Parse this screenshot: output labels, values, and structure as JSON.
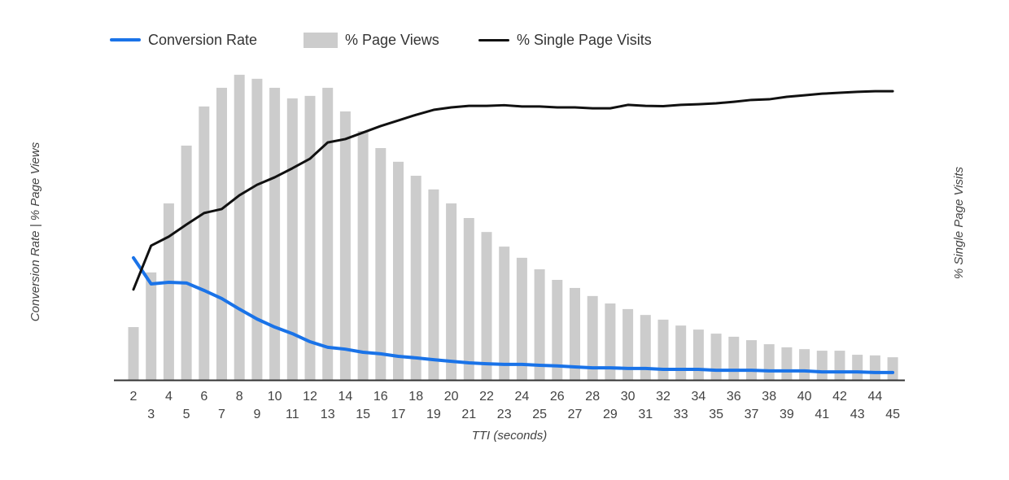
{
  "chart_data": {
    "type": "combo",
    "title": "",
    "xlabel": "TTI (seconds)",
    "ylabel_left": "Conversion Rate | % Page Views",
    "ylabel_right": "% Single Page Visits",
    "x": [
      2,
      3,
      4,
      5,
      6,
      7,
      8,
      9,
      10,
      11,
      12,
      13,
      14,
      15,
      16,
      17,
      18,
      19,
      20,
      21,
      22,
      23,
      24,
      25,
      26,
      27,
      28,
      29,
      30,
      31,
      32,
      33,
      34,
      35,
      36,
      37,
      38,
      39,
      40,
      41,
      42,
      43,
      44,
      45
    ],
    "xlim": [
      2,
      45
    ],
    "ylim": [
      0,
      100
    ],
    "grid": false,
    "legend_position": "top",
    "value_note": "axes have no numeric tick labels; series values are percent of plot height",
    "legend": [
      {
        "label": "Conversion Rate",
        "swatch": "line",
        "color": "#1a73e8"
      },
      {
        "label": "% Page Views",
        "swatch": "box",
        "color": "#cccccc"
      },
      {
        "label": "% Single Page Visits",
        "swatch": "line",
        "color": "#111111"
      }
    ],
    "series": [
      {
        "name": "Conversion Rate",
        "type": "line",
        "axis": "left",
        "color": "#1a73e8",
        "values": [
          39.3,
          30.9,
          31.4,
          31.2,
          28.8,
          26.2,
          22.8,
          19.6,
          17.0,
          14.9,
          12.3,
          10.5,
          9.9,
          8.9,
          8.4,
          7.6,
          7.1,
          6.5,
          6.0,
          5.5,
          5.2,
          5.0,
          5.0,
          4.7,
          4.5,
          4.2,
          3.9,
          3.9,
          3.7,
          3.7,
          3.4,
          3.4,
          3.4,
          3.1,
          3.1,
          3.1,
          2.9,
          2.9,
          2.9,
          2.6,
          2.6,
          2.6,
          2.4,
          2.4
        ]
      },
      {
        "name": "% Page Views",
        "type": "bar",
        "axis": "left",
        "color": "#cccccc",
        "values": [
          17.0,
          34.6,
          56.8,
          75.4,
          88.0,
          94.0,
          98.2,
          96.9,
          94.0,
          90.6,
          91.4,
          94.0,
          86.4,
          80.1,
          74.6,
          70.2,
          65.7,
          61.3,
          56.8,
          52.1,
          47.6,
          42.9,
          39.3,
          35.6,
          32.2,
          29.6,
          27.0,
          24.6,
          22.8,
          20.9,
          19.4,
          17.5,
          16.2,
          14.9,
          13.9,
          12.8,
          11.5,
          10.5,
          9.9,
          9.4,
          9.4,
          8.1,
          7.9,
          7.3
        ]
      },
      {
        "name": "% Single Page Visits",
        "type": "line",
        "axis": "right",
        "color": "#111111",
        "values": [
          29.1,
          43.2,
          46.1,
          50.0,
          53.7,
          55.0,
          59.4,
          62.8,
          65.2,
          68.1,
          71.2,
          76.4,
          77.5,
          79.6,
          81.7,
          83.5,
          85.3,
          86.9,
          87.7,
          88.2,
          88.2,
          88.4,
          88.0,
          88.0,
          87.7,
          87.7,
          87.4,
          87.4,
          88.5,
          88.2,
          88.1,
          88.5,
          88.7,
          89.0,
          89.5,
          90.1,
          90.3,
          91.1,
          91.6,
          92.1,
          92.4,
          92.7,
          92.9,
          92.9
        ]
      }
    ],
    "axis_color": "#333333",
    "tick_color": "#424242"
  }
}
